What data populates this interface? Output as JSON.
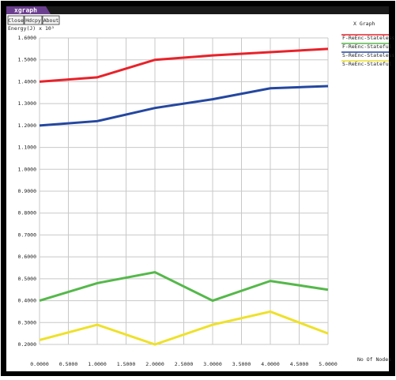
{
  "window": {
    "title": "xgraph",
    "buttons": [
      "Close",
      "Hdcpy",
      "About"
    ]
  },
  "chart_data": {
    "type": "line",
    "title": "X Graph",
    "y_label": "Energy(J) x 10³",
    "x_label": "No Of Nodes",
    "x": [
      0,
      1,
      2,
      3,
      4,
      5
    ],
    "series": [
      {
        "name": "F-ReEnc-Stateless",
        "color": "#e8222a",
        "values": [
          1.4,
          1.42,
          1.5,
          1.52,
          1.535,
          1.55
        ]
      },
      {
        "name": "F-ReEnc-Stateful",
        "color": "#55b84a",
        "values": [
          0.4,
          0.48,
          0.53,
          0.4,
          0.49,
          0.45
        ]
      },
      {
        "name": "S-ReEnc-Stateless",
        "color": "#2447a0",
        "values": [
          1.2,
          1.22,
          1.28,
          1.32,
          1.37,
          1.38
        ]
      },
      {
        "name": "S-ReEnc-Stateful",
        "color": "#eee12a",
        "values": [
          0.22,
          0.29,
          0.2,
          0.29,
          0.35,
          0.25
        ]
      }
    ],
    "xlim": [
      0,
      5
    ],
    "ylim": [
      0.2,
      1.6
    ],
    "xticks": [
      {
        "value": 0,
        "label": "0.0000"
      },
      {
        "value": 0.5,
        "label": "0.5000"
      },
      {
        "value": 1,
        "label": "1.0000"
      },
      {
        "value": 1.5,
        "label": "1.5000"
      },
      {
        "value": 2,
        "label": "2.0000"
      },
      {
        "value": 2.5,
        "label": "2.5000"
      },
      {
        "value": 3,
        "label": "3.0000"
      },
      {
        "value": 3.5,
        "label": "3.5000"
      },
      {
        "value": 4,
        "label": "4.0000"
      },
      {
        "value": 4.5,
        "label": "4.5000"
      },
      {
        "value": 5,
        "label": "5.0000"
      }
    ],
    "yticks": [
      {
        "value": 0.2,
        "label": "0.2000"
      },
      {
        "value": 0.3,
        "label": "0.3000"
      },
      {
        "value": 0.4,
        "label": "0.4000"
      },
      {
        "value": 0.5,
        "label": "0.5000"
      },
      {
        "value": 0.6,
        "label": "0.6000"
      },
      {
        "value": 0.7,
        "label": "0.7000"
      },
      {
        "value": 0.8,
        "label": "0.8000"
      },
      {
        "value": 0.9,
        "label": "0.9000"
      },
      {
        "value": 1.0,
        "label": "1.0000"
      },
      {
        "value": 1.1,
        "label": "1.1000"
      },
      {
        "value": 1.2,
        "label": "1.2000"
      },
      {
        "value": 1.3,
        "label": "1.3000"
      },
      {
        "value": 1.4,
        "label": "1.4000"
      },
      {
        "value": 1.5,
        "label": "1.5000"
      },
      {
        "value": 1.6,
        "label": "1.6000"
      }
    ],
    "grid": true
  }
}
